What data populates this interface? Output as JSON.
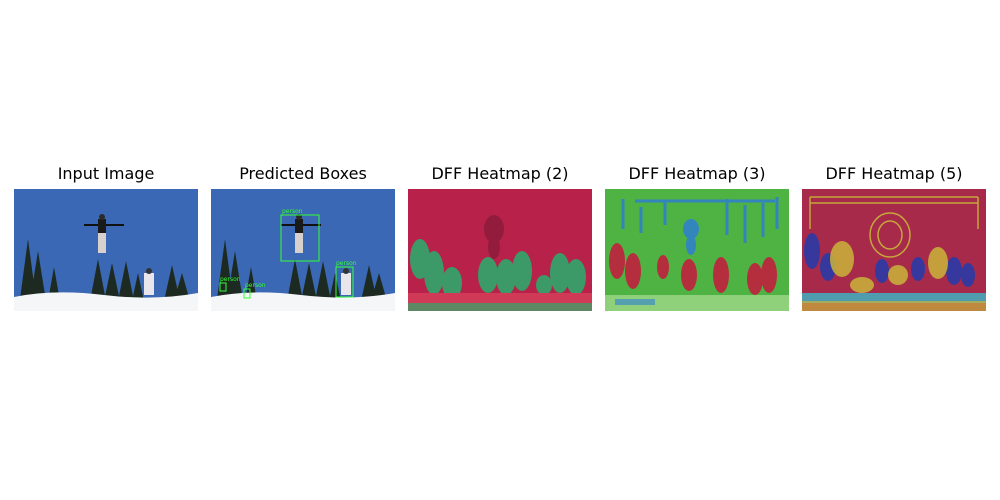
{
  "figure": {
    "panels": [
      {
        "title": "Input Image"
      },
      {
        "title": "Predicted Boxes"
      },
      {
        "title": "DFF Heatmap (2)"
      },
      {
        "title": "DFF Heatmap (3)"
      },
      {
        "title": "DFF Heatmap (5)"
      }
    ],
    "detections": [
      {
        "label": "person"
      },
      {
        "label": "person"
      },
      {
        "label": "person"
      },
      {
        "label": "person"
      }
    ],
    "colors": {
      "sky": "#3b68b4",
      "snow": "#f4f6f8",
      "trees": "#1c2a22",
      "box": "#33ff33",
      "heat2_base": "#b8214a",
      "heat2_accent": "#2ea86b",
      "heat3_base": "#4fb343",
      "heat3_accent_red": "#c0203e",
      "heat3_accent_blue": "#2f7fd0",
      "heat5_base": "#a82a4a",
      "heat5_accent_yellow": "#c9b43a",
      "heat5_accent_blue": "#2a3aa8",
      "heat5_accent_cyan": "#39b9c8"
    }
  }
}
